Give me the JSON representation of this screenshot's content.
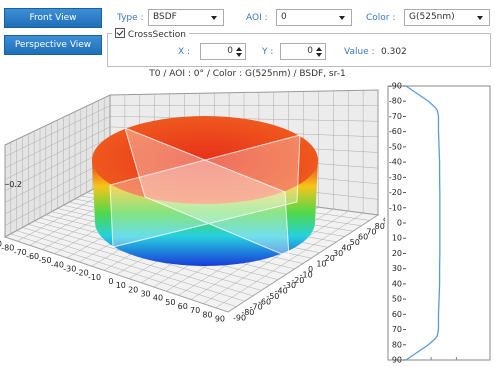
{
  "toolbar": {
    "front_view": "Front View",
    "perspective_view": "Perspective View",
    "type_label": "Type :",
    "type_value": "BSDF",
    "aoi_label": "AOI :",
    "aoi_value": "0",
    "color_label": "Color :",
    "color_value": "G(525nm)"
  },
  "cross_section": {
    "label": "CrossSection",
    "x_label": "X :",
    "x_value": "0",
    "y_label": "Y :",
    "y_value": "0",
    "value_label": "Value :",
    "value": "0.302"
  },
  "caption": "T0 / AOI : 0° / Color : G(525nm) / BSDF, sr-1",
  "plot3d": {
    "x_ticks": [
      -90,
      -80,
      -70,
      -60,
      -50,
      -40,
      -30,
      -20,
      -10,
      0,
      10,
      20,
      30,
      40,
      50,
      60,
      70,
      80,
      90
    ],
    "y_ticks": [
      -90,
      -80,
      -70,
      -60,
      -50,
      -40,
      -30,
      -20,
      -10,
      0,
      10,
      20,
      30,
      40,
      50,
      60,
      70,
      80,
      90
    ],
    "zlim": [
      0,
      0.35
    ],
    "z_ticks": [
      0.2
    ]
  },
  "chart_data": {
    "type": "line",
    "color": "#5b9bd5",
    "angles": [
      -90,
      -85,
      -80,
      -76,
      -74,
      -70,
      -60,
      -50,
      -40,
      -30,
      -20,
      -10,
      0,
      10,
      20,
      30,
      40,
      50,
      60,
      70,
      74,
      76,
      80,
      85,
      90
    ],
    "values": [
      0.0,
      0.1,
      0.2,
      0.26,
      0.28,
      0.29,
      0.29,
      0.295,
      0.3,
      0.3,
      0.302,
      0.302,
      0.302,
      0.302,
      0.302,
      0.3,
      0.3,
      0.295,
      0.29,
      0.29,
      0.28,
      0.26,
      0.2,
      0.1,
      0.0
    ],
    "xlim": [
      0,
      0.75
    ],
    "ylim": [
      -90,
      90
    ],
    "yticks": [
      -90,
      -80,
      -70,
      -60,
      -50,
      -40,
      -30,
      -20,
      -10,
      0,
      10,
      20,
      30,
      40,
      50,
      60,
      70,
      80,
      90
    ]
  }
}
